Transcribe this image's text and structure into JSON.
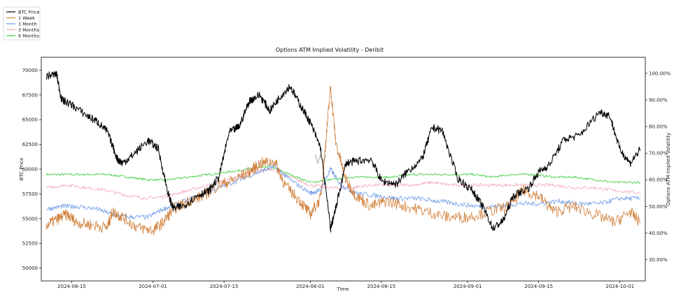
{
  "chart_data": {
    "type": "line",
    "title": "Options ATM Implied Volatility - Deribit",
    "xlabel": "Time",
    "ylabel": "BTC Price",
    "y2label": "Options ATM Implied Volatility",
    "watermark": "W",
    "x_range": [
      "2024-06-09",
      "2024-10-06"
    ],
    "ylim": [
      48700,
      71300
    ],
    "y2lim": [
      22.0,
      106.0
    ],
    "x_ticks": [
      "2024-06-15",
      "2024-07-01",
      "2024-07-15",
      "2024-08-01",
      "2024-08-15",
      "2024-09-01",
      "2024-09-15",
      "2024-10-01"
    ],
    "y_ticks": [
      50000,
      52500,
      55000,
      57500,
      60000,
      62500,
      65000,
      67500,
      70000
    ],
    "y2_ticks": [
      "30.00%",
      "40.00%",
      "50.00%",
      "60.00%",
      "70.00%",
      "80.00%",
      "90.00%",
      "100.00%"
    ],
    "y2_tick_values": [
      30,
      40,
      50,
      60,
      70,
      80,
      90,
      100
    ],
    "legend_position": "top-left-outside",
    "grid": false,
    "series": [
      {
        "name": "BTC Price",
        "axis": "left",
        "color": "#000000",
        "noise": 400,
        "x": [
          "2024-06-10",
          "2024-06-12",
          "2024-06-13",
          "2024-06-15",
          "2024-06-18",
          "2024-06-20",
          "2024-06-22",
          "2024-06-24",
          "2024-06-25",
          "2024-06-27",
          "2024-06-30",
          "2024-07-02",
          "2024-07-04",
          "2024-07-05",
          "2024-07-07",
          "2024-07-10",
          "2024-07-12",
          "2024-07-14",
          "2024-07-16",
          "2024-07-18",
          "2024-07-20",
          "2024-07-22",
          "2024-07-24",
          "2024-07-26",
          "2024-07-28",
          "2024-07-30",
          "2024-08-01",
          "2024-08-03",
          "2024-08-05",
          "2024-08-06",
          "2024-08-08",
          "2024-08-10",
          "2024-08-13",
          "2024-08-15",
          "2024-08-18",
          "2024-08-20",
          "2024-08-23",
          "2024-08-25",
          "2024-08-27",
          "2024-08-30",
          "2024-09-02",
          "2024-09-04",
          "2024-09-06",
          "2024-09-08",
          "2024-09-10",
          "2024-09-13",
          "2024-09-15",
          "2024-09-17",
          "2024-09-20",
          "2024-09-23",
          "2024-09-27",
          "2024-09-29",
          "2024-10-01",
          "2024-10-03",
          "2024-10-05"
        ],
        "y": [
          69400,
          69600,
          67000,
          66500,
          65400,
          64800,
          63800,
          61000,
          60600,
          61400,
          62900,
          62100,
          57500,
          56000,
          56300,
          57400,
          57800,
          59200,
          63700,
          64300,
          66900,
          67500,
          65900,
          67300,
          68400,
          66500,
          64700,
          62200,
          54000,
          56000,
          60600,
          60800,
          61000,
          58800,
          58500,
          59700,
          61000,
          64200,
          63900,
          59100,
          57800,
          56200,
          54000,
          54800,
          57300,
          58100,
          59700,
          60400,
          63000,
          63400,
          65800,
          65400,
          62000,
          60600,
          62000
        ]
      },
      {
        "name": "1 Week",
        "axis": "right",
        "color": "#d17f3a",
        "noise": 2.2,
        "x": [
          "2024-06-10",
          "2024-06-12",
          "2024-06-14",
          "2024-06-16",
          "2024-06-19",
          "2024-06-22",
          "2024-06-23",
          "2024-06-25",
          "2024-06-28",
          "2024-07-01",
          "2024-07-03",
          "2024-07-05",
          "2024-07-08",
          "2024-07-11",
          "2024-07-14",
          "2024-07-17",
          "2024-07-20",
          "2024-07-22",
          "2024-07-25",
          "2024-07-27",
          "2024-07-30",
          "2024-08-01",
          "2024-08-03",
          "2024-08-04",
          "2024-08-05",
          "2024-08-06",
          "2024-08-08",
          "2024-08-10",
          "2024-08-13",
          "2024-08-16",
          "2024-08-20",
          "2024-08-24",
          "2024-08-28",
          "2024-09-01",
          "2024-09-05",
          "2024-09-09",
          "2024-09-12",
          "2024-09-15",
          "2024-09-18",
          "2024-09-22",
          "2024-09-26",
          "2024-09-30",
          "2024-10-03",
          "2024-10-05"
        ],
        "y": [
          43,
          45,
          47,
          44,
          43,
          42,
          48,
          46,
          42,
          41,
          44,
          49,
          52,
          54,
          58,
          60,
          63,
          66,
          67,
          58,
          52,
          47,
          53,
          73,
          95,
          74,
          60,
          54,
          50,
          52,
          50,
          48,
          46,
          46,
          48,
          50,
          56,
          54,
          48,
          50,
          47,
          44,
          48,
          44
        ]
      },
      {
        "name": "1 Month",
        "axis": "right",
        "color": "#6b9ae8",
        "noise": 0.9,
        "x": [
          "2024-06-10",
          "2024-06-13",
          "2024-06-16",
          "2024-06-20",
          "2024-06-23",
          "2024-06-26",
          "2024-06-30",
          "2024-07-03",
          "2024-07-06",
          "2024-07-10",
          "2024-07-14",
          "2024-07-18",
          "2024-07-22",
          "2024-07-25",
          "2024-07-28",
          "2024-08-01",
          "2024-08-03",
          "2024-08-05",
          "2024-08-07",
          "2024-08-10",
          "2024-08-14",
          "2024-08-18",
          "2024-08-22",
          "2024-08-26",
          "2024-08-30",
          "2024-09-03",
          "2024-09-07",
          "2024-09-11",
          "2024-09-15",
          "2024-09-19",
          "2024-09-23",
          "2024-09-27",
          "2024-10-01",
          "2024-10-05"
        ],
        "y": [
          49,
          50,
          50,
          49,
          47,
          46,
          46,
          49,
          51,
          54,
          57,
          60,
          63,
          65,
          60,
          55,
          56,
          64,
          58,
          55,
          54,
          53,
          53,
          52,
          51,
          50,
          50,
          51,
          51,
          52,
          51,
          51,
          53,
          53
        ]
      },
      {
        "name": "3 Months",
        "axis": "right",
        "color": "#f4a5b5",
        "noise": 0.6,
        "x": [
          "2024-06-10",
          "2024-06-14",
          "2024-06-18",
          "2024-06-22",
          "2024-06-26",
          "2024-06-30",
          "2024-07-04",
          "2024-07-08",
          "2024-07-12",
          "2024-07-16",
          "2024-07-20",
          "2024-07-24",
          "2024-07-28",
          "2024-08-01",
          "2024-08-05",
          "2024-08-09",
          "2024-08-13",
          "2024-08-17",
          "2024-08-21",
          "2024-08-25",
          "2024-08-29",
          "2024-09-02",
          "2024-09-06",
          "2024-09-10",
          "2024-09-14",
          "2024-09-18",
          "2024-09-22",
          "2024-09-26",
          "2024-09-30",
          "2024-10-05"
        ],
        "y": [
          57,
          58,
          57,
          56,
          54,
          53,
          54,
          56,
          58,
          60,
          63,
          64,
          61,
          58,
          57,
          57,
          58,
          58,
          58,
          59,
          58,
          58,
          58,
          58,
          58,
          58,
          57,
          57,
          56,
          55
        ]
      },
      {
        "name": "6 Months",
        "axis": "right",
        "color": "#33cc33",
        "noise": 0.4,
        "x": [
          "2024-06-10",
          "2024-06-14",
          "2024-06-18",
          "2024-06-22",
          "2024-06-26",
          "2024-06-30",
          "2024-07-04",
          "2024-07-08",
          "2024-07-12",
          "2024-07-16",
          "2024-07-20",
          "2024-07-24",
          "2024-07-28",
          "2024-08-01",
          "2024-08-05",
          "2024-08-09",
          "2024-08-13",
          "2024-08-17",
          "2024-08-21",
          "2024-08-25",
          "2024-08-29",
          "2024-09-02",
          "2024-09-06",
          "2024-09-10",
          "2024-09-14",
          "2024-09-18",
          "2024-09-22",
          "2024-09-26",
          "2024-09-30",
          "2024-10-05"
        ],
        "y": [
          62,
          62,
          62,
          62,
          61,
          60,
          60,
          61,
          62,
          63,
          64,
          65,
          62,
          59,
          60,
          61,
          61,
          61,
          62,
          62,
          62,
          62,
          61,
          62,
          62,
          61,
          61,
          60,
          59,
          59
        ]
      }
    ]
  }
}
